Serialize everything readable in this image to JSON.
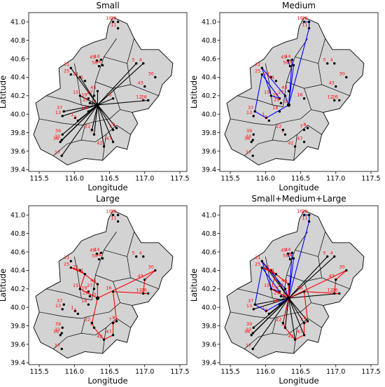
{
  "colors": {
    "small": "#000000",
    "medium": "#0000ff",
    "large": "#ff0000",
    "map_fill": "#d3d3d3",
    "label": "#ff0000"
  },
  "chart_data": [
    {
      "type": "network-map",
      "title": "Small",
      "xlabel": "Longitude",
      "ylabel": "Latitude",
      "xlim": [
        115.35,
        117.6
      ],
      "ylim": [
        39.38,
        41.1
      ],
      "xticks": [
        "115.5",
        "116.0",
        "116.5",
        "117.0",
        "117.5"
      ],
      "yticks": [
        "39.4",
        "39.6",
        "39.8",
        "40.0",
        "40.2",
        "40.4",
        "40.6",
        "40.8",
        "41.0"
      ],
      "routes": [
        {
          "name": "small",
          "color": "#000000",
          "hub": "0",
          "style": "star",
          "nodes": [
            "39",
            "17",
            "36",
            "33",
            "3",
            "22",
            "7",
            "8",
            "47",
            "42",
            "2",
            "18",
            "37",
            "13",
            "15",
            "29",
            "21",
            "31",
            "45",
            "16",
            "26",
            "5",
            "4"
          ]
        }
      ]
    },
    {
      "type": "network-map",
      "title": "Medium",
      "xlabel": "Longitude",
      "ylabel": "Latitude",
      "xlim": [
        115.35,
        117.6
      ],
      "ylim": [
        39.38,
        41.1
      ],
      "xticks": [
        "115.5",
        "116.0",
        "116.5",
        "117.0",
        "117.5"
      ],
      "yticks": [
        "39.4",
        "39.6",
        "39.8",
        "40.0",
        "40.2",
        "40.4",
        "40.6",
        "40.8",
        "41.0"
      ],
      "routes": [
        {
          "name": "medium",
          "color": "#0000ff",
          "hub": "0",
          "style": "loop",
          "nodes": [
            "0",
            "1",
            "37",
            "25",
            "19",
            "15",
            "31",
            "27",
            "0",
            "14",
            "49",
            "50",
            "38",
            "0",
            "11",
            "28",
            "10"
          ]
        }
      ]
    },
    {
      "type": "network-map",
      "title": "Large",
      "xlabel": "Longitude",
      "ylabel": "Latitude",
      "xlim": [
        115.35,
        117.6
      ],
      "ylim": [
        39.38,
        41.1
      ],
      "xticks": [
        "115.5",
        "116.0",
        "116.5",
        "117.0",
        "117.5"
      ],
      "yticks": [
        "39.4",
        "39.6",
        "39.8",
        "40.0",
        "40.2",
        "40.4",
        "40.6",
        "40.8",
        "41.0"
      ],
      "routes": [
        {
          "name": "large",
          "color": "#ff0000",
          "hub": "0",
          "style": "loop",
          "nodes": [
            "0",
            "15",
            "41",
            "25",
            "21",
            "45",
            "0",
            "30",
            "43",
            "12",
            "26",
            "16",
            "8",
            "7",
            "47",
            "42",
            "3",
            "22",
            "0"
          ]
        }
      ]
    },
    {
      "type": "network-map",
      "title": "Small+Medium+Large",
      "xlabel": "Longitude",
      "ylabel": "Latitude",
      "xlim": [
        115.35,
        117.6
      ],
      "ylim": [
        39.38,
        41.1
      ],
      "xticks": [
        "115.5",
        "116.0",
        "116.5",
        "117.0",
        "117.5"
      ],
      "yticks": [
        "39.4",
        "39.6",
        "39.8",
        "40.0",
        "40.2",
        "40.4",
        "40.6",
        "40.8",
        "41.0"
      ],
      "routes": [
        {
          "name": "small",
          "color": "#000000",
          "hub": "0",
          "style": "star",
          "nodes": [
            "39",
            "17",
            "36",
            "33",
            "3",
            "22",
            "7",
            "8",
            "47",
            "42",
            "2",
            "18",
            "37",
            "13",
            "15",
            "29",
            "21",
            "31",
            "45",
            "16",
            "26",
            "5",
            "4"
          ]
        },
        {
          "name": "medium",
          "color": "#0000ff",
          "hub": "0",
          "style": "loop",
          "nodes": [
            "0",
            "1",
            "37",
            "25",
            "19",
            "15",
            "31",
            "27",
            "0",
            "14",
            "49",
            "50",
            "38",
            "0",
            "11",
            "28",
            "10"
          ]
        },
        {
          "name": "large",
          "color": "#ff0000",
          "hub": "0",
          "style": "loop",
          "nodes": [
            "0",
            "15",
            "41",
            "25",
            "21",
            "45",
            "0",
            "30",
            "43",
            "12",
            "26",
            "16",
            "8",
            "7",
            "47",
            "42",
            "3",
            "22",
            "0"
          ]
        }
      ]
    }
  ],
  "nodes": [
    {
      "id": "0",
      "lon": 116.33,
      "lat": 40.1
    },
    {
      "id": "1",
      "lon": 116.01,
      "lat": 39.96
    },
    {
      "id": "2",
      "lon": 116.05,
      "lat": 39.93
    },
    {
      "id": "3",
      "lon": 116.28,
      "lat": 39.78
    },
    {
      "id": "4",
      "lon": 116.98,
      "lat": 40.55
    },
    {
      "id": "5",
      "lon": 116.88,
      "lat": 40.55
    },
    {
      "id": "7",
      "lon": 116.55,
      "lat": 39.83
    },
    {
      "id": "8",
      "lon": 116.6,
      "lat": 39.85
    },
    {
      "id": "10",
      "lon": 116.55,
      "lat": 41.0
    },
    {
      "id": "11",
      "lon": 116.62,
      "lat": 40.93
    },
    {
      "id": "12",
      "lon": 116.98,
      "lat": 40.15
    },
    {
      "id": "13",
      "lon": 115.83,
      "lat": 39.98
    },
    {
      "id": "14",
      "lon": 116.38,
      "lat": 40.59
    },
    {
      "id": "15",
      "lon": 116.08,
      "lat": 40.2
    },
    {
      "id": "16",
      "lon": 116.55,
      "lat": 40.17
    },
    {
      "id": "17",
      "lon": 115.82,
      "lat": 39.55
    },
    {
      "id": "18",
      "lon": 116.2,
      "lat": 40.03
    },
    {
      "id": "19",
      "lon": 116.2,
      "lat": 40.17
    },
    {
      "id": "21",
      "lon": 116.08,
      "lat": 40.4
    },
    {
      "id": "22",
      "lon": 116.25,
      "lat": 39.83
    },
    {
      "id": "25",
      "lon": 115.95,
      "lat": 40.43
    },
    {
      "id": "26",
      "lon": 117.05,
      "lat": 40.15
    },
    {
      "id": "27",
      "lon": 116.28,
      "lat": 40.2
    },
    {
      "id": "28",
      "lon": 116.62,
      "lat": 41.0
    },
    {
      "id": "29",
      "lon": 116.22,
      "lat": 40.12
    },
    {
      "id": "30",
      "lon": 117.15,
      "lat": 40.4
    },
    {
      "id": "31",
      "lon": 115.95,
      "lat": 40.5
    },
    {
      "id": "33",
      "lon": 115.82,
      "lat": 39.72
    },
    {
      "id": "36",
      "lon": 115.8,
      "lat": 39.7
    },
    {
      "id": "37",
      "lon": 115.85,
      "lat": 40.03
    },
    {
      "id": "38",
      "lon": 116.4,
      "lat": 40.53
    },
    {
      "id": "39",
      "lon": 115.83,
      "lat": 39.78
    },
    {
      "id": "41",
      "lon": 116.15,
      "lat": 40.36
    },
    {
      "id": "42",
      "lon": 116.42,
      "lat": 39.65
    },
    {
      "id": "43",
      "lon": 117.0,
      "lat": 40.3
    },
    {
      "id": "45",
      "lon": 116.33,
      "lat": 40.25
    },
    {
      "id": "47",
      "lon": 116.55,
      "lat": 39.7
    },
    {
      "id": "49",
      "lon": 116.32,
      "lat": 40.58
    },
    {
      "id": "50",
      "lon": 116.35,
      "lat": 40.52
    }
  ]
}
